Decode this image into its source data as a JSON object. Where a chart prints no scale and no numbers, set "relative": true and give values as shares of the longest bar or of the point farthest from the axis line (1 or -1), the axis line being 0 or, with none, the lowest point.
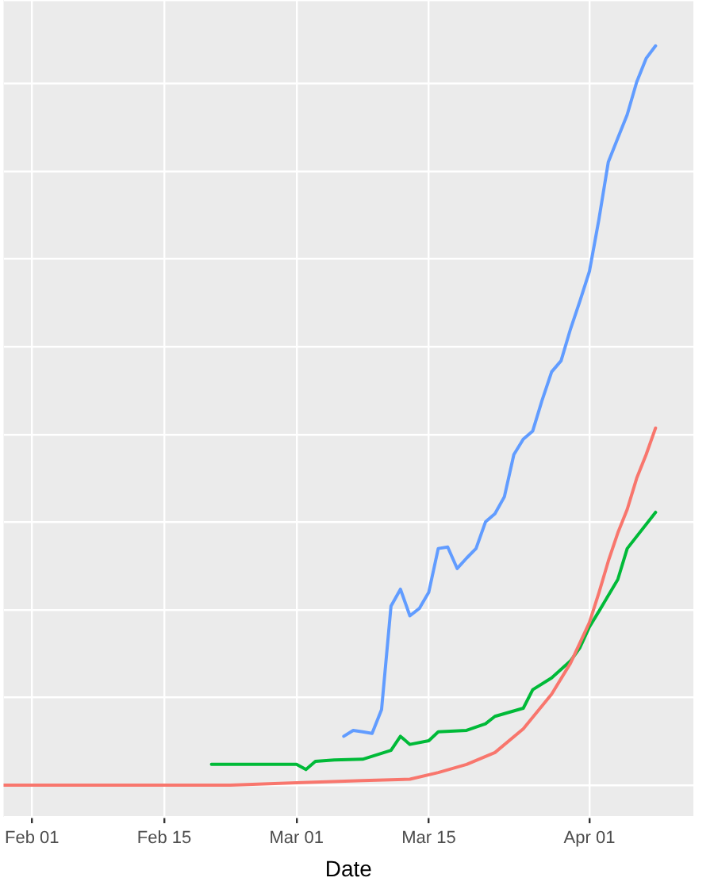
{
  "chart_data": {
    "type": "line",
    "xlabel": "Date",
    "relative": true,
    "grid": true,
    "marker": "none",
    "xlim": [
      "--01-29",
      "--04-12"
    ],
    "xticks": [
      {
        "value": "--02-01",
        "label": "Feb 01"
      },
      {
        "value": "--02-15",
        "label": "Feb 15"
      },
      {
        "value": "--03-01",
        "label": "Mar 01"
      },
      {
        "value": "--03-15",
        "label": "Mar 15"
      },
      {
        "value": "--04-01",
        "label": "Apr 01"
      }
    ],
    "series": [
      {
        "color": "#f8766d",
        "x": [
          "--01-29",
          "--02-22",
          "--03-01",
          "--03-08",
          "--03-13",
          "--03-16",
          "--03-19",
          "--03-22",
          "--03-25",
          "--03-28",
          "--03-30",
          "--04-01",
          "--04-02",
          "--04-03",
          "--04-04",
          "--04-05",
          "--04-06",
          "--04-07",
          "--04-08"
        ],
        "values": [
          0,
          0,
          0.003,
          0.006,
          0.008,
          0.017,
          0.028,
          0.044,
          0.076,
          0.123,
          0.165,
          0.22,
          0.26,
          0.303,
          0.341,
          0.373,
          0.415,
          0.447,
          0.483
        ]
      },
      {
        "color": "#00ba38",
        "x": [
          "--02-20",
          "--03-01",
          "--03-02",
          "--03-03",
          "--03-05",
          "--03-08",
          "--03-11",
          "--03-12",
          "--03-13",
          "--03-15",
          "--03-16",
          "--03-19",
          "--03-21",
          "--03-22",
          "--03-25",
          "--03-26",
          "--03-28",
          "--03-30",
          "--03-31",
          "--04-01",
          "--04-02",
          "--04-04",
          "--04-05",
          "--04-08"
        ],
        "values": [
          0.028,
          0.028,
          0.021,
          0.032,
          0.034,
          0.035,
          0.047,
          0.066,
          0.055,
          0.06,
          0.072,
          0.074,
          0.083,
          0.093,
          0.104,
          0.129,
          0.145,
          0.168,
          0.186,
          0.214,
          0.235,
          0.278,
          0.32,
          0.369
        ]
      },
      {
        "color": "#619cff",
        "x": [
          "--03-06",
          "--03-07",
          "--03-08",
          "--03-09",
          "--03-10",
          "--03-11",
          "--03-12",
          "--03-13",
          "--03-14",
          "--03-15",
          "--03-16",
          "--03-17",
          "--03-18",
          "--03-19",
          "--03-20",
          "--03-21",
          "--03-22",
          "--03-23",
          "--03-24",
          "--03-25",
          "--03-26",
          "--03-27",
          "--03-28",
          "--03-29",
          "--03-30",
          "--03-31",
          "--04-01",
          "--04-02",
          "--04-03",
          "--04-04",
          "--04-05",
          "--04-06",
          "--04-07",
          "--04-08"
        ],
        "values": [
          0.066,
          0.074,
          0.072,
          0.07,
          0.102,
          0.242,
          0.265,
          0.229,
          0.239,
          0.261,
          0.32,
          0.322,
          0.293,
          0.307,
          0.32,
          0.356,
          0.367,
          0.39,
          0.447,
          0.468,
          0.479,
          0.521,
          0.559,
          0.574,
          0.617,
          0.655,
          0.695,
          0.765,
          0.843,
          0.875,
          0.907,
          0.951,
          0.983,
          1
        ]
      }
    ]
  }
}
